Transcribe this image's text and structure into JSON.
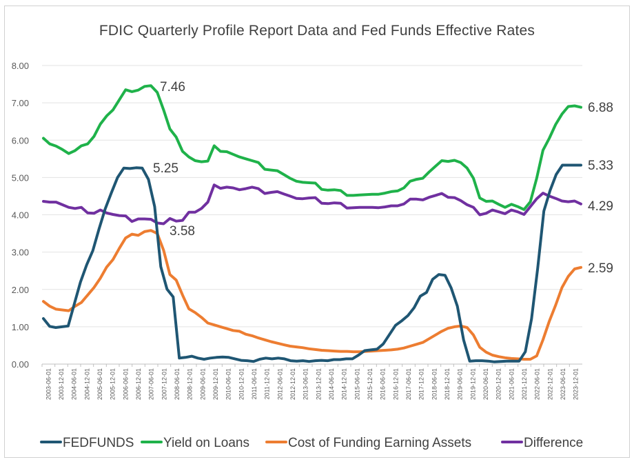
{
  "chart_data": {
    "type": "line",
    "title": "FDIC Quarterly Profile Report Data and Fed Funds Effective Rates",
    "xlabel": "",
    "ylabel": "",
    "ylim": [
      0,
      8
    ],
    "yticks": [
      "0.00",
      "1.00",
      "2.00",
      "3.00",
      "4.00",
      "5.00",
      "6.00",
      "7.00",
      "8.00"
    ],
    "x_tick_labels": [
      "2003-06-01",
      "2003-12-01",
      "2004-06-01",
      "2004-12-01",
      "2005-06-01",
      "2005-12-01",
      "2006-06-01",
      "2006-12-01",
      "2007-06-01",
      "2007-12-01",
      "2008-06-01",
      "2008-12-01",
      "2009-06-01",
      "2009-12-01",
      "2010-06-01",
      "2010-12-01",
      "2011-06-01",
      "2011-12-01",
      "2012-06-01",
      "2012-12-01",
      "2013-06-01",
      "2013-12-01",
      "2014-06-01",
      "2014-12-01",
      "2015-06-01",
      "2015-12-01",
      "2016-06-01",
      "2016-12-01",
      "2017-06-01",
      "2017-12-01",
      "2018-06-01",
      "2018-12-01",
      "2019-06-01",
      "2019-12-01",
      "2020-06-01",
      "2020-12-01",
      "2021-06-01",
      "2021-12-01",
      "2022-06-01",
      "2022-12-01",
      "2023-06-01",
      "2023-12-01"
    ],
    "legend_position": "bottom",
    "series": [
      {
        "name": "FEDFUNDS",
        "color": "#1f5673",
        "values": [
          1.22,
          1.01,
          0.98,
          1.0,
          1.02,
          1.61,
          2.2,
          2.66,
          3.04,
          3.62,
          4.16,
          4.59,
          5.0,
          5.25,
          5.24,
          5.26,
          5.25,
          4.95,
          4.22,
          2.61,
          2.01,
          1.8,
          0.16,
          0.18,
          0.21,
          0.16,
          0.13,
          0.16,
          0.18,
          0.19,
          0.18,
          0.14,
          0.1,
          0.09,
          0.07,
          0.13,
          0.16,
          0.14,
          0.16,
          0.14,
          0.09,
          0.08,
          0.09,
          0.07,
          0.09,
          0.1,
          0.09,
          0.12,
          0.12,
          0.14,
          0.14,
          0.24,
          0.36,
          0.38,
          0.4,
          0.54,
          0.79,
          1.04,
          1.16,
          1.3,
          1.51,
          1.82,
          1.92,
          2.27,
          2.4,
          2.38,
          2.04,
          1.55,
          0.65,
          0.08,
          0.09,
          0.09,
          0.08,
          0.06,
          0.07,
          0.08,
          0.08,
          0.08,
          0.33,
          1.21,
          2.56,
          4.1,
          4.65,
          5.08,
          5.33,
          5.33,
          5.33,
          5.33
        ]
      },
      {
        "name": "Yield on Loans",
        "color": "#1fb24a",
        "values": [
          6.05,
          5.9,
          5.84,
          5.75,
          5.64,
          5.72,
          5.85,
          5.9,
          6.1,
          6.43,
          6.65,
          6.81,
          7.08,
          7.35,
          7.3,
          7.34,
          7.44,
          7.46,
          7.28,
          6.81,
          6.3,
          6.08,
          5.7,
          5.55,
          5.45,
          5.42,
          5.44,
          5.85,
          5.7,
          5.69,
          5.62,
          5.55,
          5.5,
          5.45,
          5.4,
          5.22,
          5.2,
          5.18,
          5.08,
          4.98,
          4.9,
          4.87,
          4.86,
          4.85,
          4.68,
          4.66,
          4.67,
          4.65,
          4.52,
          4.52,
          4.53,
          4.54,
          4.55,
          4.55,
          4.58,
          4.62,
          4.64,
          4.72,
          4.9,
          4.95,
          4.98,
          5.15,
          5.3,
          5.45,
          5.43,
          5.46,
          5.4,
          5.25,
          4.98,
          4.45,
          4.36,
          4.37,
          4.28,
          4.2,
          4.28,
          4.22,
          4.14,
          4.35,
          4.98,
          5.73,
          6.05,
          6.42,
          6.7,
          6.9,
          6.92,
          6.88
        ]
      },
      {
        "name": "Cost of Funding Earning Assets",
        "color": "#ed7d31",
        "values": [
          1.68,
          1.55,
          1.47,
          1.45,
          1.43,
          1.55,
          1.65,
          1.85,
          2.05,
          2.3,
          2.6,
          2.8,
          3.1,
          3.38,
          3.48,
          3.45,
          3.55,
          3.58,
          3.5,
          3.05,
          2.4,
          2.25,
          1.85,
          1.48,
          1.38,
          1.25,
          1.1,
          1.05,
          1.0,
          0.95,
          0.9,
          0.88,
          0.8,
          0.76,
          0.7,
          0.65,
          0.6,
          0.56,
          0.52,
          0.48,
          0.46,
          0.44,
          0.41,
          0.39,
          0.37,
          0.36,
          0.35,
          0.34,
          0.34,
          0.33,
          0.33,
          0.34,
          0.35,
          0.36,
          0.37,
          0.38,
          0.4,
          0.43,
          0.48,
          0.53,
          0.58,
          0.68,
          0.78,
          0.88,
          0.96,
          1.0,
          1.02,
          0.98,
          0.78,
          0.45,
          0.32,
          0.24,
          0.2,
          0.17,
          0.15,
          0.14,
          0.13,
          0.13,
          0.22,
          0.65,
          1.15,
          1.58,
          2.05,
          2.35,
          2.55,
          2.59
        ]
      },
      {
        "name": "Difference",
        "color": "#7030a0",
        "values": [
          4.36,
          4.34,
          4.34,
          4.27,
          4.2,
          4.17,
          4.2,
          4.05,
          4.04,
          4.13,
          4.05,
          4.01,
          3.98,
          3.97,
          3.82,
          3.89,
          3.89,
          3.88,
          3.78,
          3.76,
          3.9,
          3.83,
          3.85,
          4.07,
          4.07,
          4.17,
          4.34,
          4.8,
          4.71,
          4.74,
          4.72,
          4.67,
          4.7,
          4.74,
          4.7,
          4.57,
          4.6,
          4.62,
          4.56,
          4.5,
          4.44,
          4.43,
          4.45,
          4.46,
          4.31,
          4.3,
          4.32,
          4.31,
          4.18,
          4.19,
          4.2,
          4.2,
          4.2,
          4.19,
          4.21,
          4.24,
          4.24,
          4.29,
          4.42,
          4.42,
          4.4,
          4.47,
          4.52,
          4.57,
          4.47,
          4.46,
          4.38,
          4.27,
          4.2,
          4.0,
          4.04,
          4.13,
          4.08,
          4.03,
          4.13,
          4.08,
          4.01,
          4.22,
          4.43,
          4.58,
          4.5,
          4.44,
          4.37,
          4.35,
          4.37,
          4.29
        ]
      }
    ],
    "annotations": [
      {
        "series": "Yield on Loans",
        "text": "7.46"
      },
      {
        "series": "FEDFUNDS",
        "text": "5.25"
      },
      {
        "series": "Cost of Funding Earning Assets",
        "text": "3.58"
      },
      {
        "series": "Yield on Loans",
        "text": "6.88"
      },
      {
        "series": "FEDFUNDS",
        "text": "5.33"
      },
      {
        "series": "Difference",
        "text": "4.29"
      },
      {
        "series": "Cost of Funding Earning Assets",
        "text": "2.59"
      }
    ]
  }
}
